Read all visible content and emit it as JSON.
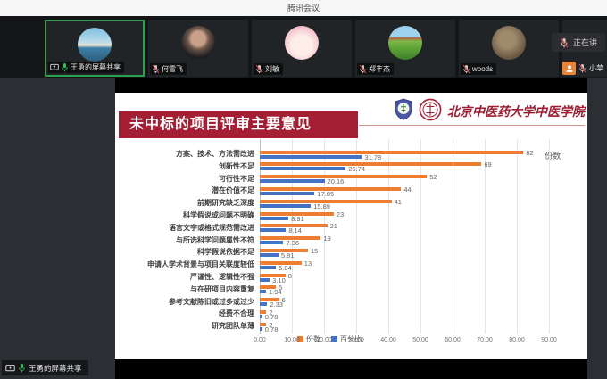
{
  "window": {
    "title": "腾讯会议"
  },
  "participants": [
    {
      "name": "王勇的屏幕共享",
      "mic": "on",
      "screen_sharing": true,
      "speaking": true
    },
    {
      "name": "何雪飞",
      "mic": "muted"
    },
    {
      "name": "刘敏",
      "mic": "muted"
    },
    {
      "name": "郑丰杰",
      "mic": "muted"
    },
    {
      "name": "woods",
      "mic": "muted"
    },
    {
      "name": "小苹",
      "mic": "muted",
      "status_tooltip": "正在讲"
    }
  ],
  "share_banner": {
    "label": "王勇的屏幕共享"
  },
  "slide": {
    "title": "未中标的项目评审主要意见",
    "organization": "北京中医药大学中医学院",
    "series_callout": "份数",
    "accent_color": "#A41E34",
    "org_text_color": "#9E1B32"
  },
  "chart_data": {
    "type": "bar",
    "orientation": "horizontal",
    "title": "",
    "xlabel": "",
    "ylabel": "",
    "categories": [
      "方案、技术、方法需改进",
      "创新性不足",
      "可行性不足",
      "潜在价值不足",
      "前期研究缺乏深度",
      "科学假说或问题不明确",
      "语言文字或格式规范需改进",
      "与所选科学问题属性不符",
      "科学假说依据不足",
      "申请人学术背景与项目关联度较低",
      "严谨性、逻辑性不强",
      "与在研项目内容重复",
      "参考文献陈旧或过多或过少",
      "经费不合理",
      "研究团队单薄"
    ],
    "series": [
      {
        "name": "份数",
        "color": "#ED7D31",
        "values": [
          82,
          69,
          52,
          44,
          41,
          23,
          21,
          19,
          15,
          13,
          8,
          5,
          6,
          2,
          2
        ],
        "labels": [
          "82",
          "69",
          "52",
          "44",
          "41",
          "23",
          "21",
          "19",
          "15",
          "13",
          "8",
          "5",
          "6",
          "2",
          "2"
        ]
      },
      {
        "name": "百分比",
        "color": "#4472C4",
        "values": [
          31.78,
          26.74,
          20.16,
          17.05,
          15.89,
          8.91,
          8.14,
          7.36,
          5.81,
          5.04,
          3.1,
          1.94,
          2.33,
          0.78,
          0.78
        ],
        "labels": [
          "31.78",
          "26.74",
          "20.16",
          "17.05",
          "15.89",
          "8.91",
          "8.14",
          "7.36",
          "5.81",
          "5.04",
          "3.10",
          "1.94",
          "2.33",
          "0.78",
          "0.78"
        ]
      }
    ],
    "x_ticks": [
      "0.00",
      "10.00",
      "20.00",
      "30.00",
      "40.00",
      "50.00",
      "60.00",
      "70.00",
      "80.00",
      "90.00"
    ],
    "xlim": [
      0,
      95
    ],
    "grid": true,
    "legend_position": "bottom",
    "value_labels": true
  }
}
